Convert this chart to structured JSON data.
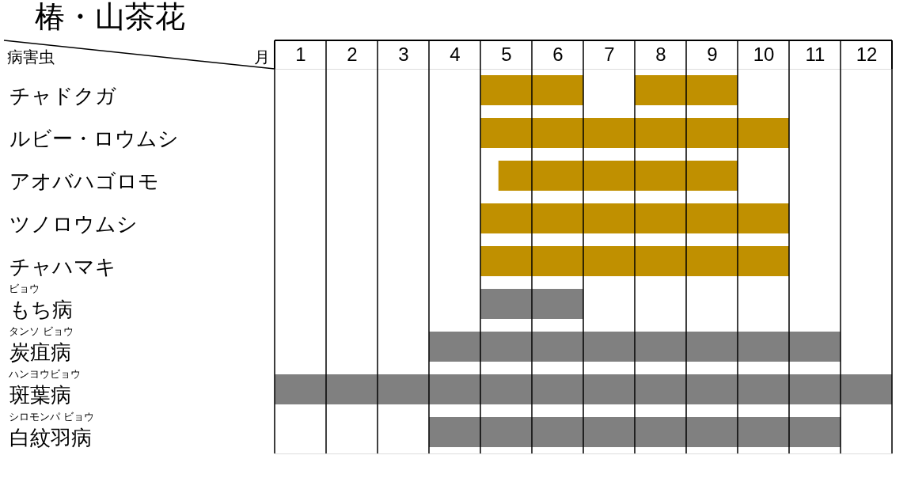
{
  "chart_data": {
    "type": "bar",
    "orientation": "horizontal",
    "title": "椿・山茶花",
    "xlabel": "月",
    "ylabel": "病害虫",
    "categories": [
      "チャドクガ",
      "ルビー・ロウムシ",
      "アオバハゴロモ",
      "ツノロウムシ",
      "チャハマキ",
      "もち病",
      "炭疽病",
      "斑葉病",
      "白紋羽病"
    ],
    "series": [
      {
        "values": [
          2,
          6,
          4.65,
          6,
          6,
          2,
          8,
          12,
          8
        ],
        "base": [
          4.5,
          4.5,
          4.85,
          4.5,
          4.5,
          4.5,
          3.5,
          0.5,
          3.5
        ],
        "colors": [
          "#c09000",
          "#c09000",
          "#c09000",
          "#c09000",
          "#c09000",
          "#808080",
          "#808080",
          "#808080",
          "#808080"
        ]
      },
      {
        "values": [
          2,
          null,
          null,
          null,
          null,
          null,
          null,
          null,
          null
        ],
        "base": [
          7.5,
          null,
          null,
          null,
          null,
          null,
          null,
          null,
          null
        ],
        "colors": [
          "#c09000",
          null,
          null,
          null,
          null,
          null,
          null,
          null,
          null
        ]
      }
    ],
    "xlim": [
      0.5,
      12.5
    ],
    "xticks": [
      1,
      2,
      3,
      4,
      5,
      6,
      7,
      8,
      9,
      10,
      11,
      12,
      {
        "value": 0.5,
        "label": null
      },
      {
        "value": 1.5,
        "label": null
      },
      {
        "value": 2.5,
        "label": null
      },
      {
        "value": 3.5,
        "label": null
      },
      {
        "value": 4.5,
        "label": null
      },
      {
        "value": 5.5,
        "label": null
      },
      {
        "value": 6.5,
        "label": null
      },
      {
        "value": 7.5,
        "label": null
      },
      {
        "value": 8.5,
        "label": null
      },
      {
        "value": 9.5,
        "label": null
      },
      {
        "value": 10.5,
        "label": null
      },
      {
        "value": 11.5,
        "label": null
      },
      {
        "value": 12.5,
        "label": null
      }
    ],
    "grid": "x",
    "annotations": [
      "ビョウ",
      "タンソ ビョウ",
      "ハンヨウビョウ",
      "シロモンパ ビョウ"
    ]
  }
}
